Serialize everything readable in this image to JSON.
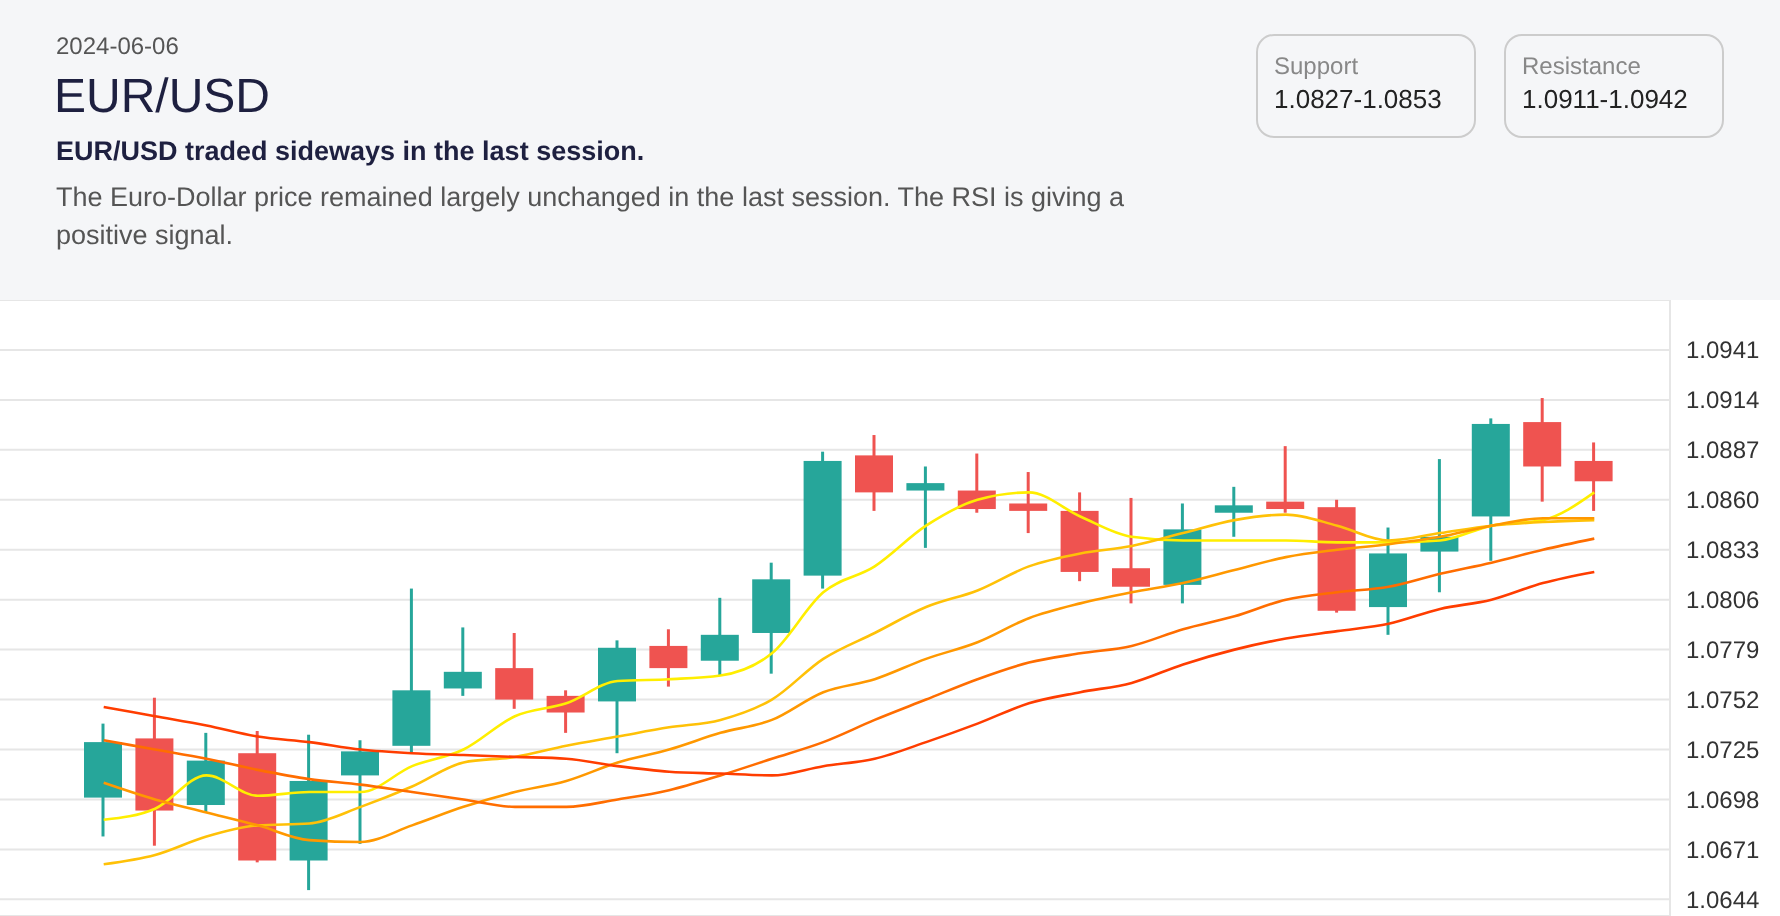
{
  "chart_data": {
    "type": "candlestick",
    "title": "EUR/USD",
    "subtitle": "EUR/USD traded sideways in the last session.",
    "annotations": [
      "2024-06-06",
      "The Euro-Dollar price remained largely unchanged in the last session. The RSI is giving a positive signal.",
      "Support",
      "1.0827-1.0853",
      "Resistance",
      "1.0911-1.0942"
    ],
    "categories": [
      null,
      null,
      null,
      null,
      null,
      null,
      null,
      null,
      null,
      null,
      null,
      null,
      null,
      null,
      null,
      null,
      null,
      null,
      null,
      null,
      null,
      null,
      null,
      null,
      null,
      null,
      null,
      null,
      null,
      null
    ],
    "ohlc": [
      [
        1.0699,
        1.0739,
        1.0678,
        1.0729
      ],
      [
        1.0731,
        1.0753,
        1.0673,
        1.0692
      ],
      [
        1.0695,
        1.0734,
        1.0691,
        1.0719
      ],
      [
        1.0723,
        1.0735,
        1.0664,
        1.0665
      ],
      [
        1.0665,
        1.0733,
        1.0649,
        1.0708
      ],
      [
        1.0711,
        1.073,
        1.0674,
        1.0724
      ],
      [
        1.0727,
        1.0812,
        1.0723,
        1.0757
      ],
      [
        1.0758,
        1.0791,
        1.0754,
        1.0767
      ],
      [
        1.0769,
        1.0788,
        1.0747,
        1.0752
      ],
      [
        1.0754,
        1.0757,
        1.0734,
        1.0745
      ],
      [
        1.0751,
        1.0784,
        1.0723,
        1.078
      ],
      [
        1.0781,
        1.079,
        1.0759,
        1.0769
      ],
      [
        1.0773,
        1.0807,
        1.0765,
        1.0787
      ],
      [
        1.0788,
        1.0826,
        1.0766,
        1.0817
      ],
      [
        1.0819,
        1.0886,
        1.0812,
        1.0881
      ],
      [
        1.0884,
        1.0895,
        1.0854,
        1.0864
      ],
      [
        1.0865,
        1.0878,
        1.0834,
        1.0869
      ],
      [
        1.0865,
        1.0885,
        1.0853,
        1.0855
      ],
      [
        1.0858,
        1.0875,
        1.0842,
        1.0854
      ],
      [
        1.0854,
        1.0864,
        1.0816,
        1.0821
      ],
      [
        1.0823,
        1.0861,
        1.0804,
        1.0813
      ],
      [
        1.0814,
        1.0858,
        1.0804,
        1.0844
      ],
      [
        1.0853,
        1.0867,
        1.084,
        1.0857
      ],
      [
        1.0859,
        1.0889,
        1.0853,
        1.0855
      ],
      [
        1.0856,
        1.086,
        1.0799,
        1.08
      ],
      [
        1.0802,
        1.0845,
        1.0787,
        1.0831
      ],
      [
        1.0832,
        1.0882,
        1.081,
        1.084
      ],
      [
        1.0851,
        1.0904,
        1.0827,
        1.0901
      ],
      [
        1.0902,
        1.0915,
        1.0859,
        1.0878
      ],
      [
        1.0881,
        1.0891,
        1.0854,
        1.087
      ]
    ],
    "colors": [
      "#26a69a",
      "#ef5350",
      "#26a69a",
      "#ef5350",
      "#26a69a",
      "#26a69a",
      "#26a69a",
      "#26a69a",
      "#ef5350",
      "#ef5350",
      "#26a69a",
      "#ef5350",
      "#26a69a",
      "#26a69a",
      "#26a69a",
      "#ef5350",
      "#26a69a",
      "#ef5350",
      "#ef5350",
      "#ef5350",
      "#ef5350",
      "#26a69a",
      "#26a69a",
      "#ef5350",
      "#ef5350",
      "#26a69a",
      "#26a69a",
      "#26a69a",
      "#ef5350",
      "#ef5350"
    ],
    "series": [
      {
        "type": "line",
        "color": "#ffee00",
        "values": [
          1.0687,
          1.0693,
          1.0711,
          1.07,
          1.0702,
          1.0702,
          1.0716,
          1.0725,
          1.0743,
          1.075,
          1.0762,
          1.0763,
          1.0765,
          1.0777,
          1.081,
          1.0824,
          1.0846,
          1.086,
          1.0864,
          1.0851,
          1.084,
          1.0838,
          1.0838,
          1.0838,
          1.0837,
          1.0837,
          1.0838,
          1.0846,
          1.0849,
          1.0864
        ]
      },
      {
        "type": "line",
        "color": "#ffc107",
        "values": [
          1.0663,
          1.0668,
          1.0678,
          1.0684,
          1.0685,
          1.0694,
          1.0705,
          1.0718,
          1.0721,
          1.0727,
          1.0732,
          1.0737,
          1.0741,
          1.0752,
          1.0774,
          1.0788,
          1.0802,
          1.0811,
          1.0824,
          1.0831,
          1.0835,
          1.0842,
          1.0849,
          1.0852,
          1.0846,
          1.0838,
          1.0842,
          1.0846,
          1.0848,
          1.0849
        ]
      },
      {
        "type": "line",
        "color": "#ff9800",
        "values": [
          1.0707,
          1.0698,
          1.0691,
          1.0684,
          1.0676,
          1.0675,
          1.0684,
          1.0694,
          1.0702,
          1.0708,
          1.0718,
          1.0725,
          1.0734,
          1.0741,
          1.0756,
          1.0763,
          1.0774,
          1.0783,
          1.0796,
          1.0804,
          1.081,
          1.0815,
          1.0822,
          1.0829,
          1.0833,
          1.0836,
          1.084,
          1.0846,
          1.085,
          1.085
        ]
      },
      {
        "type": "line",
        "color": "#ff6d00",
        "values": [
          1.073,
          1.0725,
          1.072,
          1.0714,
          1.0709,
          1.0706,
          1.0702,
          1.0698,
          1.0694,
          1.0694,
          1.0698,
          1.0703,
          1.0711,
          1.072,
          1.0729,
          1.0741,
          1.0752,
          1.0763,
          1.0772,
          1.0777,
          1.0781,
          1.079,
          1.0797,
          1.0806,
          1.081,
          1.0813,
          1.082,
          1.0826,
          1.0833,
          1.0839
        ]
      },
      {
        "type": "line",
        "color": "#ff3d00",
        "values": [
          1.0748,
          1.0743,
          1.0738,
          1.0732,
          1.0729,
          1.0725,
          1.0723,
          1.0722,
          1.0721,
          1.072,
          1.0716,
          1.0713,
          1.0712,
          1.0711,
          1.0716,
          1.072,
          1.0729,
          1.0739,
          1.075,
          1.0756,
          1.0761,
          1.0771,
          1.0779,
          1.0785,
          1.0789,
          1.0793,
          1.0801,
          1.0806,
          1.0815,
          1.0821
        ]
      }
    ],
    "ylim": [
      1.0635,
      1.0968
    ],
    "yticks": [
      1.0644,
      1.0671,
      1.0698,
      1.0725,
      1.0752,
      1.0779,
      1.0806,
      1.0833,
      {
        "value": 1.086,
        "label": "1.0860"
      },
      1.0887,
      1.0914,
      1.0941
    ],
    "tick_labels": "y",
    "grid": "y",
    "marker": "none",
    "line_style": "solid"
  }
}
